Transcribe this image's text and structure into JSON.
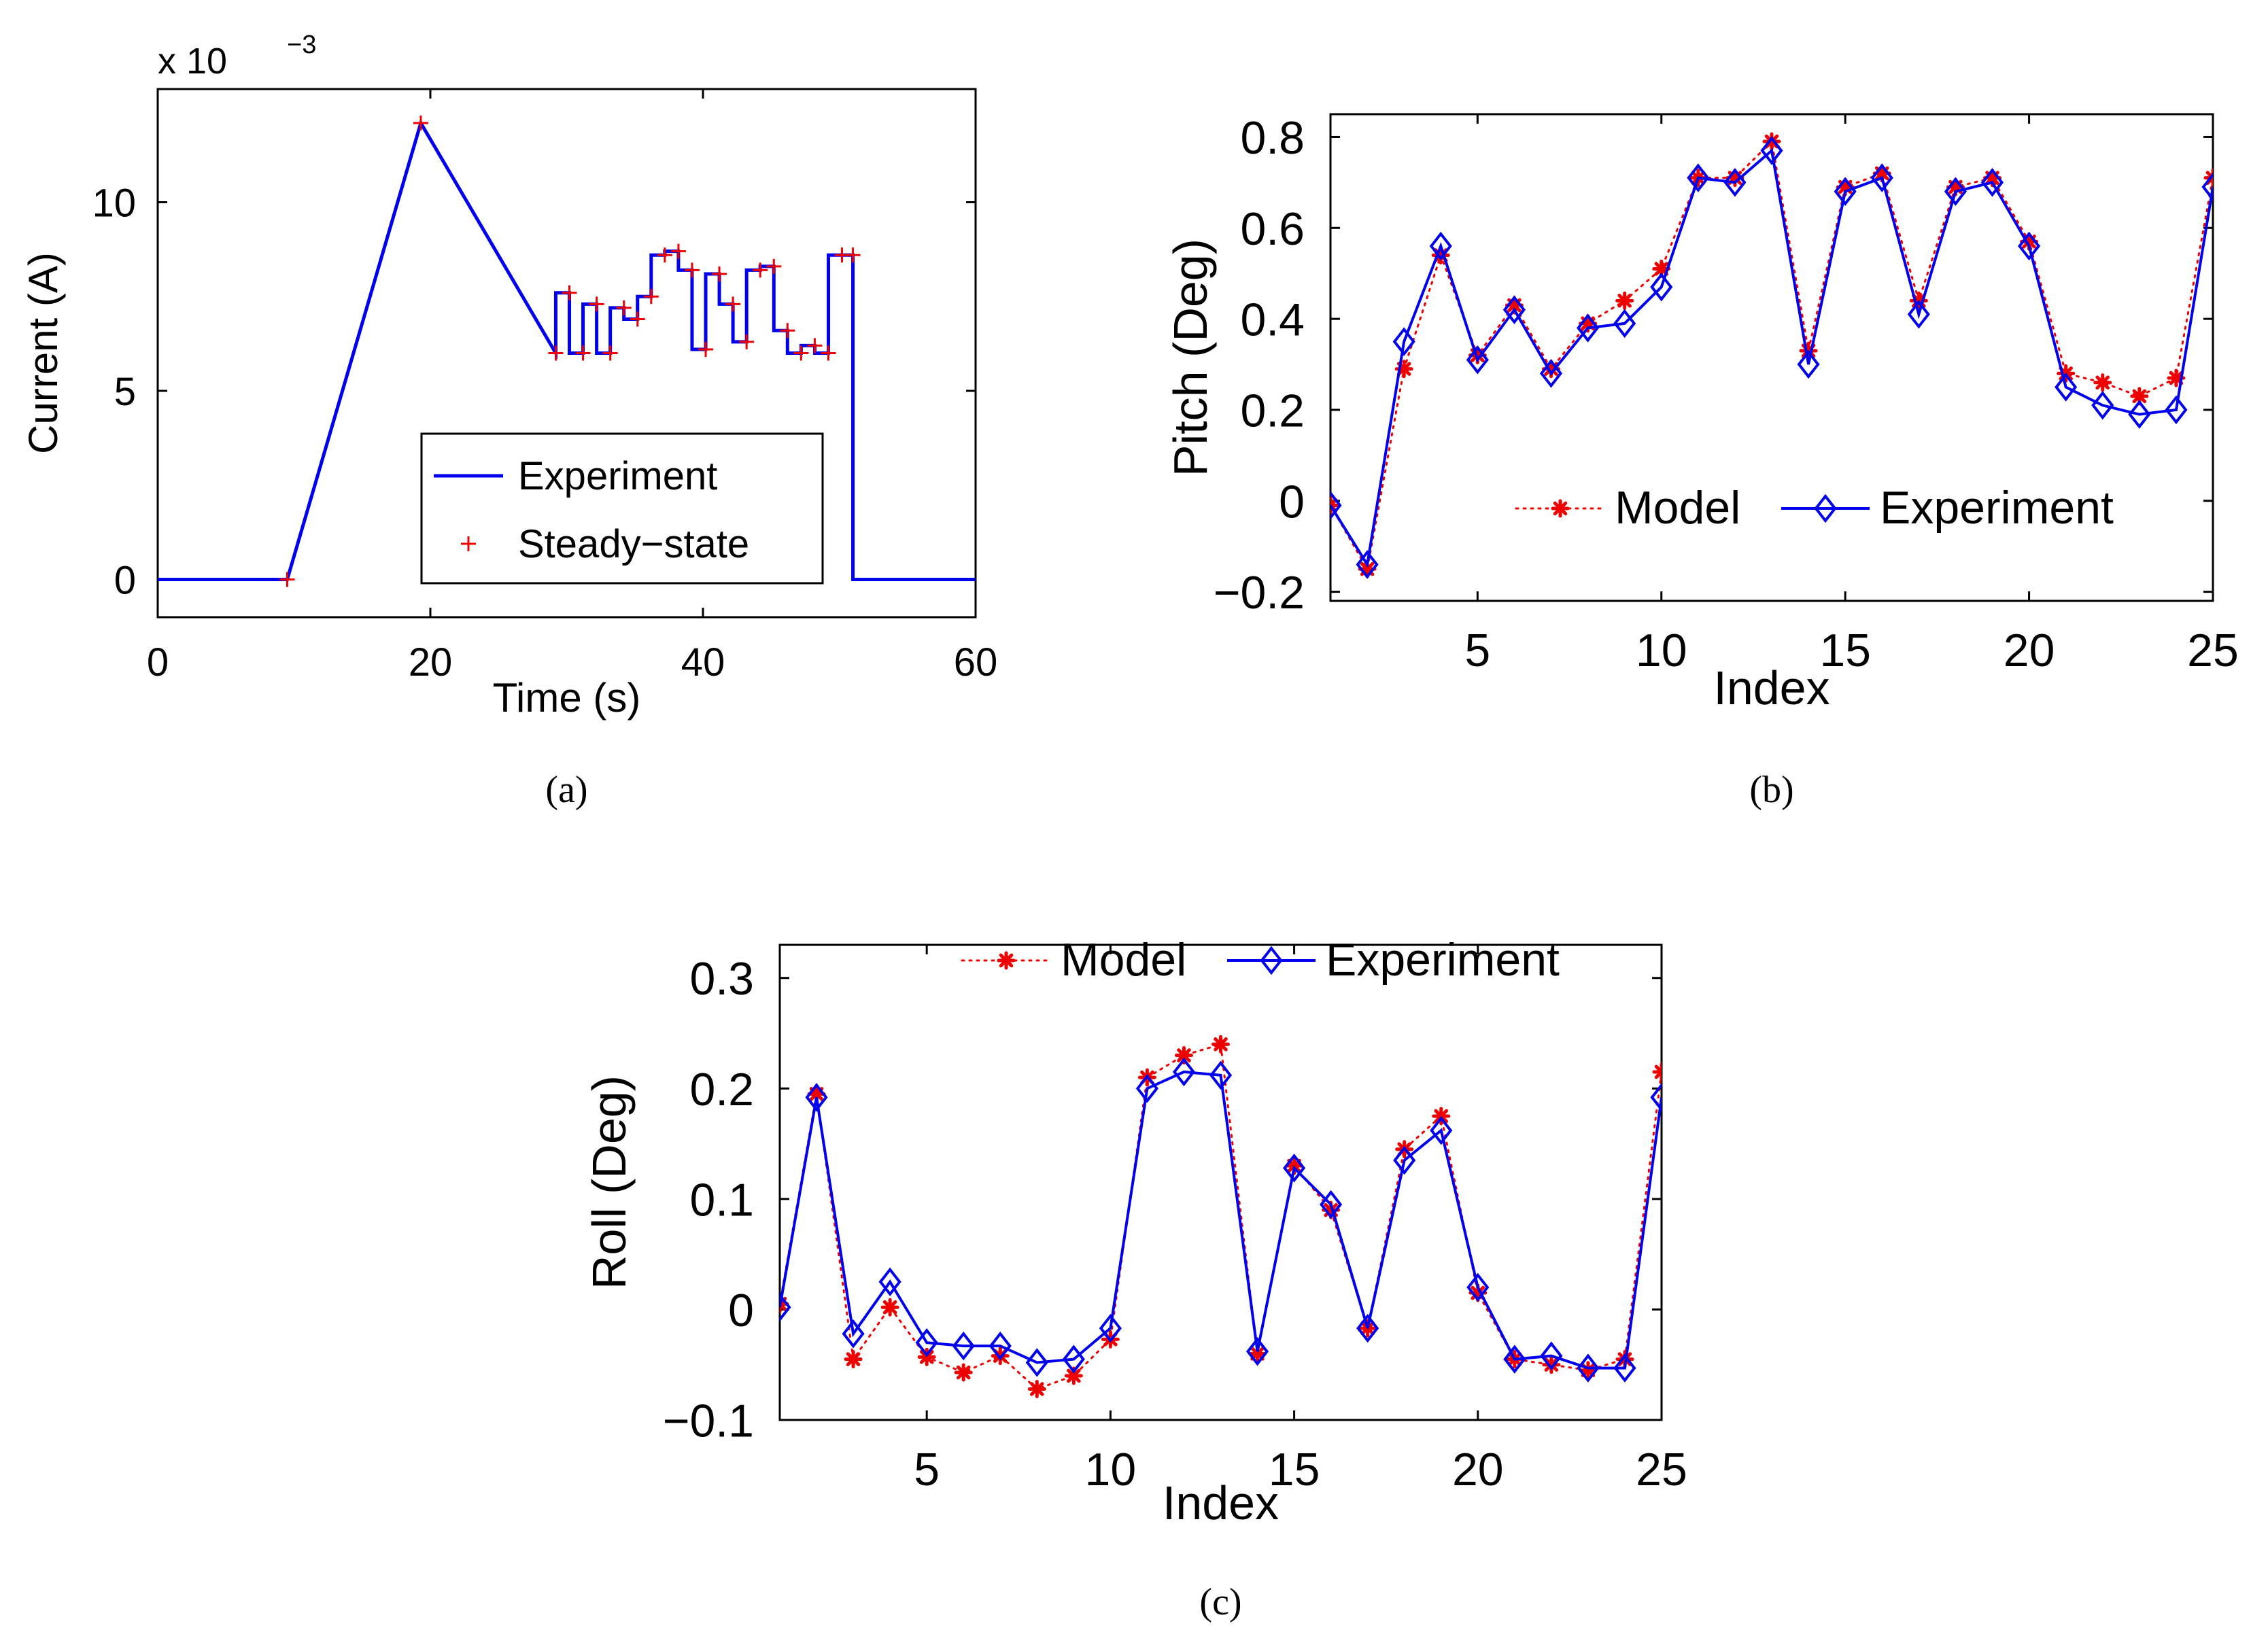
{
  "chart_data": [
    {
      "id": "a",
      "type": "line",
      "caption": "(a)",
      "xlabel": "Time (s)",
      "ylabel": "Current (A)",
      "y_multiplier_label": "x 10",
      "y_multiplier_exponent": "−3",
      "xlim": [
        0,
        60
      ],
      "ylim": [
        -1,
        13
      ],
      "xticks": [
        0,
        20,
        40,
        60
      ],
      "xtick_labels": [
        "0",
        "20",
        "40",
        "60"
      ],
      "yticks": [
        0,
        5,
        10
      ],
      "ytick_labels": [
        "0",
        "5",
        "10"
      ],
      "legend_position": "lower-right",
      "colors": {
        "experiment": "#0000ee",
        "steady": "#ee0000"
      },
      "series": [
        {
          "name": "Experiment",
          "style": "solid-line",
          "x": [
            0,
            9.5,
            19.3,
            29.2,
            29.2,
            30.2,
            30.2,
            31.2,
            31.2,
            32.2,
            32.2,
            33.2,
            33.2,
            34.2,
            34.2,
            35.2,
            35.2,
            36.2,
            36.2,
            37.2,
            37.2,
            38.2,
            38.2,
            39.2,
            39.2,
            40.2,
            40.2,
            41.2,
            41.2,
            42.2,
            42.2,
            43.2,
            43.2,
            44.2,
            44.2,
            45.2,
            45.2,
            46.2,
            46.2,
            47.2,
            47.2,
            48.2,
            48.2,
            49.2,
            49.2,
            50.2,
            50.2,
            51.0,
            51.0,
            60
          ],
          "y": [
            0,
            0,
            12.1,
            6.0,
            7.6,
            7.6,
            6.0,
            6.0,
            7.3,
            7.3,
            6.0,
            6.0,
            7.2,
            7.2,
            6.9,
            6.9,
            7.5,
            7.5,
            8.6,
            8.6,
            8.7,
            8.7,
            8.2,
            8.2,
            6.1,
            6.1,
            8.1,
            8.1,
            7.3,
            7.3,
            6.3,
            6.3,
            8.2,
            8.2,
            8.3,
            8.3,
            6.6,
            6.6,
            6.0,
            6.0,
            6.2,
            6.2,
            6.0,
            6.0,
            8.6,
            8.6,
            8.6,
            8.6,
            0,
            0
          ]
        },
        {
          "name": "Steady−state",
          "style": "plus-marker",
          "x": [
            9.5,
            19.3,
            29.2,
            30.2,
            31.2,
            32.2,
            33.2,
            34.2,
            35.2,
            36.2,
            37.2,
            38.2,
            39.2,
            40.2,
            41.2,
            42.2,
            43.2,
            44.2,
            45.2,
            46.2,
            47.2,
            48.2,
            49.2,
            50.2,
            51.0
          ],
          "y": [
            0,
            12.1,
            6.0,
            7.6,
            6.0,
            7.3,
            6.0,
            7.2,
            6.9,
            7.5,
            8.6,
            8.7,
            8.2,
            6.1,
            8.1,
            7.3,
            6.3,
            8.2,
            8.3,
            6.6,
            6.0,
            6.2,
            6.0,
            8.6,
            8.6
          ]
        }
      ]
    },
    {
      "id": "b",
      "type": "line",
      "caption": "(b)",
      "xlabel": "Index",
      "ylabel": "Pitch (Deg)",
      "xlim": [
        1,
        25
      ],
      "ylim": [
        -0.22,
        0.85
      ],
      "xticks": [
        5,
        10,
        15,
        20,
        25
      ],
      "xtick_labels": [
        "5",
        "10",
        "15",
        "20",
        "25"
      ],
      "yticks": [
        -0.2,
        0,
        0.2,
        0.4,
        0.6,
        0.8
      ],
      "ytick_labels": [
        "−0.2",
        "0",
        "0.2",
        "0.4",
        "0.6",
        "0.8"
      ],
      "legend_position": "lower-right",
      "colors": {
        "model": "#ee0000",
        "experiment": "#0000ee"
      },
      "x": [
        1,
        2,
        3,
        4,
        5,
        6,
        7,
        8,
        9,
        10,
        11,
        12,
        13,
        14,
        15,
        16,
        17,
        18,
        19,
        20,
        21,
        22,
        23,
        24,
        25
      ],
      "series": [
        {
          "name": "Model",
          "style": "dotted-star",
          "values": [
            -0.01,
            -0.15,
            0.29,
            0.54,
            0.32,
            0.43,
            0.29,
            0.39,
            0.44,
            0.51,
            0.71,
            0.71,
            0.79,
            0.33,
            0.69,
            0.72,
            0.44,
            0.69,
            0.71,
            0.57,
            0.28,
            0.26,
            0.23,
            0.27,
            0.71
          ]
        },
        {
          "name": "Experiment",
          "style": "solid-diamond",
          "values": [
            -0.01,
            -0.14,
            0.35,
            0.56,
            0.31,
            0.42,
            0.28,
            0.38,
            0.39,
            0.47,
            0.71,
            0.7,
            0.77,
            0.3,
            0.68,
            0.71,
            0.41,
            0.68,
            0.7,
            0.56,
            0.25,
            0.21,
            0.19,
            0.2,
            0.69
          ]
        }
      ]
    },
    {
      "id": "c",
      "type": "line",
      "caption": "(c)",
      "xlabel": "Index",
      "ylabel": "Roll (Deg)",
      "xlim": [
        1,
        25
      ],
      "ylim": [
        -0.1,
        0.33
      ],
      "xticks": [
        5,
        10,
        15,
        20,
        25
      ],
      "xtick_labels": [
        "5",
        "10",
        "15",
        "20",
        "25"
      ],
      "yticks": [
        -0.1,
        0,
        0.1,
        0.2,
        0.3
      ],
      "ytick_labels": [
        "−0.1",
        "0",
        "0.1",
        "0.2",
        "0.3"
      ],
      "legend_position": "top-right",
      "colors": {
        "model": "#ee0000",
        "experiment": "#0000ee"
      },
      "x": [
        1,
        2,
        3,
        4,
        5,
        6,
        7,
        8,
        9,
        10,
        11,
        12,
        13,
        14,
        15,
        16,
        17,
        18,
        19,
        20,
        21,
        22,
        23,
        24,
        25
      ],
      "series": [
        {
          "name": "Model",
          "style": "dotted-star",
          "values": [
            0.005,
            0.195,
            -0.045,
            0.002,
            -0.043,
            -0.057,
            -0.042,
            -0.072,
            -0.06,
            -0.027,
            0.21,
            0.23,
            0.24,
            -0.04,
            0.13,
            0.09,
            -0.017,
            0.145,
            0.175,
            0.015,
            -0.045,
            -0.05,
            -0.055,
            -0.045,
            0.215
          ]
        },
        {
          "name": "Experiment",
          "style": "solid-diamond",
          "values": [
            0.002,
            0.192,
            -0.022,
            0.025,
            -0.03,
            -0.033,
            -0.033,
            -0.048,
            -0.045,
            -0.017,
            0.2,
            0.215,
            0.212,
            -0.038,
            0.128,
            0.095,
            -0.017,
            0.135,
            0.162,
            0.02,
            -0.045,
            -0.042,
            -0.053,
            -0.053,
            0.192
          ]
        }
      ]
    }
  ]
}
